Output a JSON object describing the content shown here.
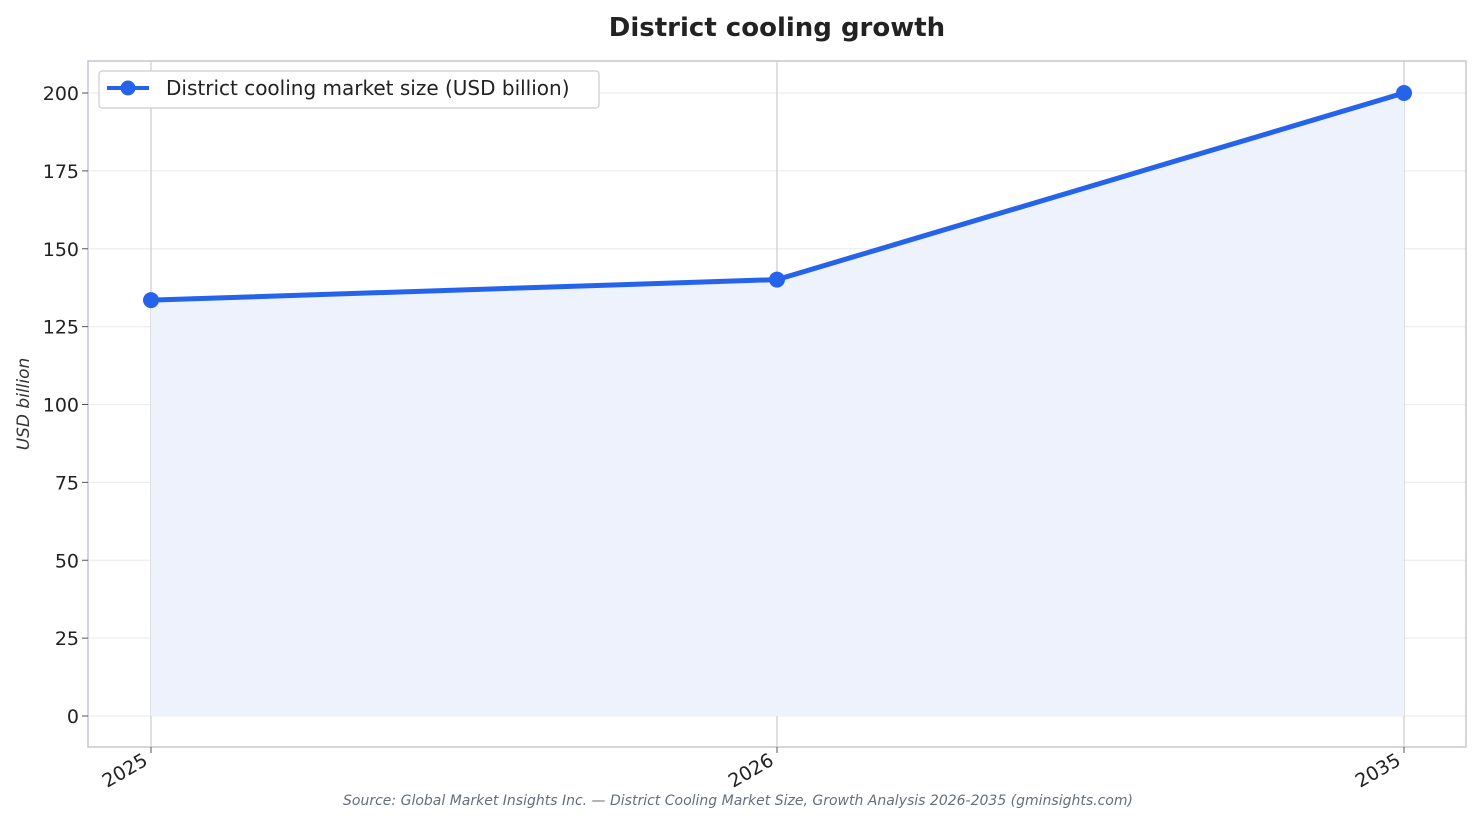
{
  "chart_data": {
    "type": "line",
    "title": "District cooling growth",
    "xlabel": "",
    "ylabel": "USD billion",
    "x": [
      "2025",
      "2026",
      "2035"
    ],
    "series": [
      {
        "name": "District cooling market size (USD billion)",
        "values": [
          133.5,
          140.1,
          200.0
        ],
        "color": "#2563eb",
        "fill": "#edf2fd"
      }
    ],
    "ylim": [
      -10,
      210
    ],
    "yticks": [
      0,
      25,
      50,
      75,
      100,
      125,
      150,
      175,
      200
    ],
    "grid": true,
    "legend": "top-left",
    "source": "Source: Global Market Insights Inc. — District Cooling Market Size, Growth Analysis 2026-2035 (gminsights.com)"
  }
}
